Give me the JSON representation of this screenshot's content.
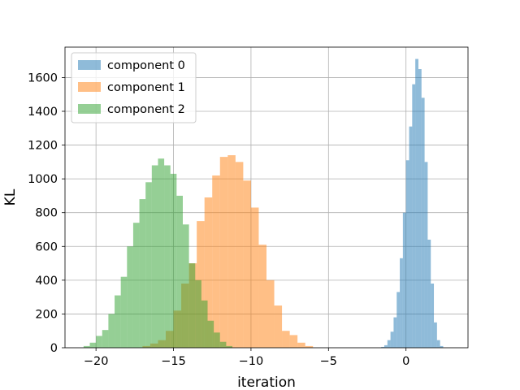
{
  "chart_data": {
    "type": "bar",
    "subtype": "overlapping-histogram",
    "title": "",
    "xlabel": "iteration",
    "ylabel": "KL",
    "xlim": [
      -22,
      4
    ],
    "ylim": [
      0,
      1780
    ],
    "xticks": [
      -20,
      -15,
      -10,
      -5,
      0
    ],
    "xtick_labels": [
      "−20",
      "−15",
      "−10",
      "−5",
      "0"
    ],
    "yticks": [
      0,
      200,
      400,
      600,
      800,
      1000,
      1200,
      1400,
      1600
    ],
    "grid": true,
    "legend_position": "upper-left",
    "bar_alpha": 0.5,
    "series": [
      {
        "name": "component 0",
        "color": "#1f77b4",
        "bins": [
          [
            -1.6,
            -1.4,
            5
          ],
          [
            -1.4,
            -1.2,
            15
          ],
          [
            -1.2,
            -1.0,
            45
          ],
          [
            -1.0,
            -0.8,
            95
          ],
          [
            -0.8,
            -0.6,
            180
          ],
          [
            -0.6,
            -0.4,
            330
          ],
          [
            -0.4,
            -0.2,
            530
          ],
          [
            -0.2,
            0.0,
            800
          ],
          [
            0.0,
            0.2,
            1110
          ],
          [
            0.2,
            0.4,
            1310
          ],
          [
            0.4,
            0.6,
            1560
          ],
          [
            0.6,
            0.8,
            1710
          ],
          [
            0.8,
            1.0,
            1650
          ],
          [
            1.0,
            1.2,
            1480
          ],
          [
            1.2,
            1.4,
            1100
          ],
          [
            1.4,
            1.6,
            640
          ],
          [
            1.6,
            1.8,
            380
          ],
          [
            1.8,
            2.0,
            150
          ],
          [
            2.0,
            2.2,
            45
          ],
          [
            2.2,
            2.4,
            10
          ]
        ]
      },
      {
        "name": "component 1",
        "color": "#ff7f0e",
        "bins": [
          [
            -17.0,
            -16.5,
            10
          ],
          [
            -16.5,
            -16.0,
            25
          ],
          [
            -16.0,
            -15.5,
            45
          ],
          [
            -15.5,
            -15.0,
            100
          ],
          [
            -15.0,
            -14.5,
            220
          ],
          [
            -14.5,
            -14.0,
            380
          ],
          [
            -14.0,
            -13.5,
            500
          ],
          [
            -13.5,
            -13.0,
            750
          ],
          [
            -13.0,
            -12.5,
            890
          ],
          [
            -12.5,
            -12.0,
            1020
          ],
          [
            -12.0,
            -11.5,
            1130
          ],
          [
            -11.5,
            -11.0,
            1140
          ],
          [
            -11.0,
            -10.5,
            1100
          ],
          [
            -10.5,
            -10.0,
            990
          ],
          [
            -10.0,
            -9.5,
            830
          ],
          [
            -9.5,
            -9.0,
            610
          ],
          [
            -9.0,
            -8.5,
            400
          ],
          [
            -8.5,
            -8.0,
            250
          ],
          [
            -8.0,
            -7.5,
            100
          ],
          [
            -7.5,
            -7.0,
            75
          ],
          [
            -7.0,
            -6.5,
            30
          ],
          [
            -6.5,
            -6.0,
            10
          ]
        ]
      },
      {
        "name": "component 2",
        "color": "#2ca02c",
        "bins": [
          [
            -20.8,
            -20.4,
            10
          ],
          [
            -20.4,
            -20.0,
            30
          ],
          [
            -20.0,
            -19.6,
            70
          ],
          [
            -19.6,
            -19.2,
            105
          ],
          [
            -19.2,
            -18.8,
            200
          ],
          [
            -18.8,
            -18.4,
            310
          ],
          [
            -18.4,
            -18.0,
            420
          ],
          [
            -18.0,
            -17.6,
            600
          ],
          [
            -17.6,
            -17.2,
            740
          ],
          [
            -17.2,
            -16.8,
            880
          ],
          [
            -16.8,
            -16.4,
            980
          ],
          [
            -16.4,
            -16.0,
            1080
          ],
          [
            -16.0,
            -15.6,
            1120
          ],
          [
            -15.6,
            -15.2,
            1080
          ],
          [
            -15.2,
            -14.8,
            1030
          ],
          [
            -14.8,
            -14.4,
            900
          ],
          [
            -14.4,
            -14.0,
            730
          ],
          [
            -14.0,
            -13.6,
            500
          ],
          [
            -13.6,
            -13.2,
            400
          ],
          [
            -13.2,
            -12.8,
            280
          ],
          [
            -12.8,
            -12.4,
            160
          ],
          [
            -12.4,
            -12.0,
            90
          ],
          [
            -12.0,
            -11.6,
            35
          ],
          [
            -11.6,
            -11.2,
            10
          ]
        ]
      }
    ]
  }
}
